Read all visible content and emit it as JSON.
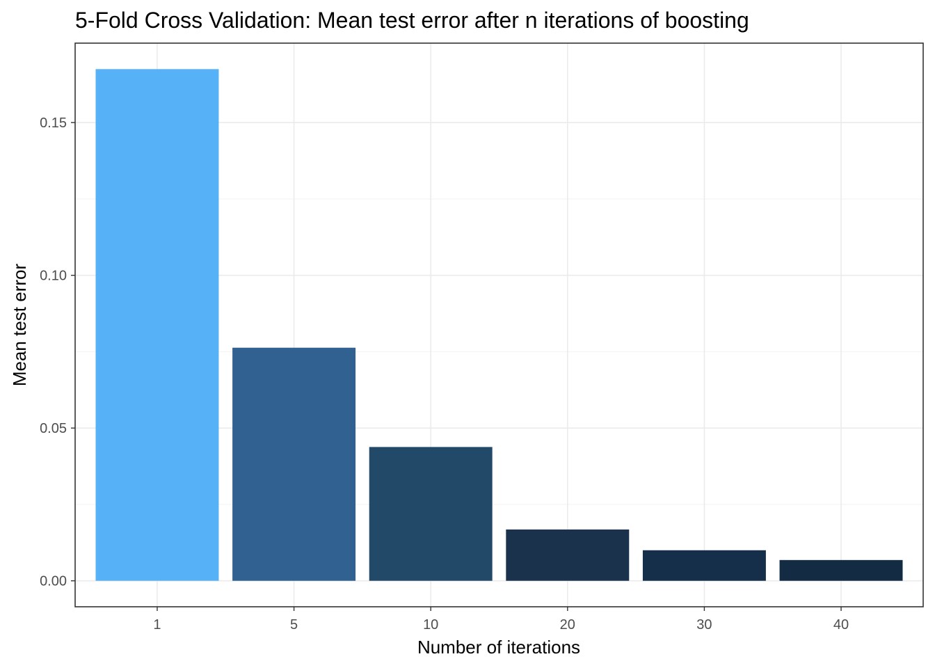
{
  "chart_data": {
    "type": "bar",
    "title": "5-Fold Cross Validation: Mean test error after n iterations of boosting",
    "xlabel": "Number of iterations",
    "ylabel": "Mean test error",
    "categories": [
      "1",
      "5",
      "10",
      "20",
      "30",
      "40"
    ],
    "values": [
      0.1675,
      0.0763,
      0.0438,
      0.0168,
      0.01,
      0.0068
    ],
    "bar_colors": [
      "#56b1f7",
      "#306190",
      "#234968",
      "#1a324b",
      "#152f4a",
      "#132b43"
    ],
    "ylim": [
      -0.0085,
      0.176
    ],
    "y_ticks": [
      0.0,
      0.05,
      0.1,
      0.15
    ],
    "y_tick_labels": [
      "0.00",
      "0.05",
      "0.10",
      "0.15"
    ],
    "y_minor_ticks": [
      0.025,
      0.075,
      0.125
    ],
    "grid": true,
    "legend": "none"
  }
}
